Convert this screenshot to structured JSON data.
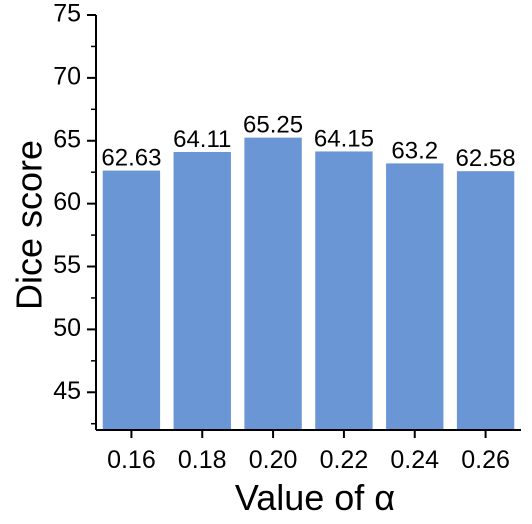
{
  "chart_data": {
    "type": "bar",
    "categories": [
      "0.16",
      "0.18",
      "0.20",
      "0.22",
      "0.24",
      "0.26"
    ],
    "values": [
      62.63,
      64.11,
      65.25,
      64.15,
      63.2,
      62.58
    ],
    "data_labels": [
      "62.63",
      "64.11",
      "65.25",
      "64.15",
      "63.2",
      "62.58"
    ],
    "xlabel": "Value of α",
    "ylabel": "Dice score",
    "ylim": [
      42,
      75
    ],
    "yticks": [
      45,
      50,
      55,
      60,
      65,
      70,
      75
    ],
    "grid": false,
    "bar_color": "#6a96d6"
  }
}
